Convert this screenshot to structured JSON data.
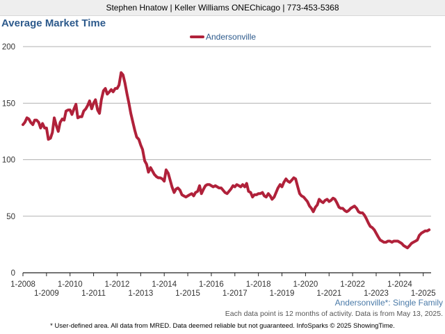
{
  "header": {
    "contact_line": "Stephen Hnatow | Keller Williams ONEChicago | 773-453-5368"
  },
  "chart_data": {
    "type": "line",
    "title": "Average Market Time",
    "xlabel": "",
    "ylabel": "",
    "ylim": [
      0,
      200
    ],
    "yticks": [
      "0",
      "50",
      "100",
      "150",
      "200"
    ],
    "xlim": [
      2008.0,
      2025.333
    ],
    "xticks": [
      {
        "label": "1-2008",
        "x": 2008,
        "row": 1
      },
      {
        "label": "1-2009",
        "x": 2009,
        "row": 2
      },
      {
        "label": "1-2010",
        "x": 2010,
        "row": 1
      },
      {
        "label": "1-2011",
        "x": 2011,
        "row": 2
      },
      {
        "label": "1-2012",
        "x": 2012,
        "row": 1
      },
      {
        "label": "1-2013",
        "x": 2013,
        "row": 2
      },
      {
        "label": "1-2014",
        "x": 2014,
        "row": 1
      },
      {
        "label": "1-2015",
        "x": 2015,
        "row": 2
      },
      {
        "label": "1-2016",
        "x": 2016,
        "row": 1
      },
      {
        "label": "1-2017",
        "x": 2017,
        "row": 2
      },
      {
        "label": "1-2018",
        "x": 2018,
        "row": 1
      },
      {
        "label": "1-2019",
        "x": 2019,
        "row": 2
      },
      {
        "label": "1-2020",
        "x": 2020,
        "row": 1
      },
      {
        "label": "1-2021",
        "x": 2021,
        "row": 2
      },
      {
        "label": "1-2022",
        "x": 2022,
        "row": 1
      },
      {
        "label": "1-2023",
        "x": 2023,
        "row": 2
      },
      {
        "label": "1-2024",
        "x": 2024,
        "row": 1
      },
      {
        "label": "1-2025",
        "x": 2025,
        "row": 2
      }
    ],
    "grid": true,
    "legend_position": "top-center",
    "series": [
      {
        "name": "Andersonville",
        "color": "#b0213a",
        "points": [
          [
            2008.0,
            131
          ],
          [
            2008.08,
            133
          ],
          [
            2008.17,
            137
          ],
          [
            2008.25,
            136
          ],
          [
            2008.33,
            133
          ],
          [
            2008.42,
            131
          ],
          [
            2008.5,
            135
          ],
          [
            2008.58,
            135
          ],
          [
            2008.67,
            133
          ],
          [
            2008.75,
            128
          ],
          [
            2008.83,
            132
          ],
          [
            2008.92,
            128
          ],
          [
            2009.0,
            128
          ],
          [
            2009.08,
            118
          ],
          [
            2009.17,
            119
          ],
          [
            2009.25,
            124
          ],
          [
            2009.33,
            137
          ],
          [
            2009.42,
            130
          ],
          [
            2009.5,
            125
          ],
          [
            2009.58,
            133
          ],
          [
            2009.67,
            136
          ],
          [
            2009.75,
            135
          ],
          [
            2009.83,
            143
          ],
          [
            2009.92,
            144
          ],
          [
            2010.0,
            144
          ],
          [
            2010.08,
            140
          ],
          [
            2010.17,
            145
          ],
          [
            2010.25,
            149
          ],
          [
            2010.33,
            137
          ],
          [
            2010.42,
            138
          ],
          [
            2010.5,
            138
          ],
          [
            2010.58,
            143
          ],
          [
            2010.67,
            145
          ],
          [
            2010.75,
            148
          ],
          [
            2010.83,
            152
          ],
          [
            2010.92,
            145
          ],
          [
            2011.0,
            150
          ],
          [
            2011.08,
            153
          ],
          [
            2011.17,
            144
          ],
          [
            2011.25,
            141
          ],
          [
            2011.33,
            153
          ],
          [
            2011.42,
            161
          ],
          [
            2011.5,
            163
          ],
          [
            2011.58,
            158
          ],
          [
            2011.67,
            160
          ],
          [
            2011.75,
            162
          ],
          [
            2011.83,
            160
          ],
          [
            2011.92,
            163
          ],
          [
            2012.0,
            163
          ],
          [
            2012.08,
            166
          ],
          [
            2012.17,
            177
          ],
          [
            2012.25,
            175
          ],
          [
            2012.33,
            168
          ],
          [
            2012.42,
            158
          ],
          [
            2012.5,
            150
          ],
          [
            2012.58,
            141
          ],
          [
            2012.67,
            133
          ],
          [
            2012.75,
            126
          ],
          [
            2012.83,
            120
          ],
          [
            2012.92,
            118
          ],
          [
            2013.0,
            113
          ],
          [
            2013.08,
            109
          ],
          [
            2013.17,
            99
          ],
          [
            2013.25,
            96
          ],
          [
            2013.33,
            89
          ],
          [
            2013.42,
            93
          ],
          [
            2013.5,
            90
          ],
          [
            2013.58,
            87
          ],
          [
            2013.67,
            85
          ],
          [
            2013.75,
            84
          ],
          [
            2013.83,
            84
          ],
          [
            2013.92,
            83
          ],
          [
            2014.0,
            81
          ],
          [
            2014.08,
            91
          ],
          [
            2014.17,
            88
          ],
          [
            2014.25,
            82
          ],
          [
            2014.33,
            76
          ],
          [
            2014.42,
            71
          ],
          [
            2014.5,
            74
          ],
          [
            2014.58,
            75
          ],
          [
            2014.67,
            73
          ],
          [
            2014.75,
            69
          ],
          [
            2014.83,
            68
          ],
          [
            2014.92,
            67
          ],
          [
            2015.0,
            68
          ],
          [
            2015.08,
            69
          ],
          [
            2015.17,
            70
          ],
          [
            2015.25,
            68
          ],
          [
            2015.33,
            71
          ],
          [
            2015.42,
            72
          ],
          [
            2015.5,
            77
          ],
          [
            2015.58,
            70
          ],
          [
            2015.67,
            74
          ],
          [
            2015.75,
            77
          ],
          [
            2015.83,
            78
          ],
          [
            2015.92,
            78
          ],
          [
            2016.0,
            77
          ],
          [
            2016.08,
            76
          ],
          [
            2016.17,
            77
          ],
          [
            2016.25,
            76
          ],
          [
            2016.33,
            75
          ],
          [
            2016.42,
            75
          ],
          [
            2016.5,
            73
          ],
          [
            2016.58,
            71
          ],
          [
            2016.67,
            70
          ],
          [
            2016.75,
            72
          ],
          [
            2016.83,
            74
          ],
          [
            2016.92,
            77
          ],
          [
            2017.0,
            76
          ],
          [
            2017.08,
            78
          ],
          [
            2017.17,
            77
          ],
          [
            2017.25,
            76
          ],
          [
            2017.33,
            78
          ],
          [
            2017.42,
            76
          ],
          [
            2017.5,
            79
          ],
          [
            2017.58,
            72
          ],
          [
            2017.67,
            71
          ],
          [
            2017.75,
            67
          ],
          [
            2017.83,
            69
          ],
          [
            2017.92,
            69
          ],
          [
            2018.0,
            70
          ],
          [
            2018.08,
            70
          ],
          [
            2018.17,
            71
          ],
          [
            2018.25,
            68
          ],
          [
            2018.33,
            67
          ],
          [
            2018.42,
            70
          ],
          [
            2018.5,
            68
          ],
          [
            2018.58,
            65
          ],
          [
            2018.67,
            67
          ],
          [
            2018.75,
            71
          ],
          [
            2018.83,
            75
          ],
          [
            2018.92,
            78
          ],
          [
            2019.0,
            76
          ],
          [
            2019.08,
            80
          ],
          [
            2019.17,
            83
          ],
          [
            2019.25,
            81
          ],
          [
            2019.33,
            80
          ],
          [
            2019.42,
            82
          ],
          [
            2019.5,
            84
          ],
          [
            2019.58,
            83
          ],
          [
            2019.67,
            76
          ],
          [
            2019.75,
            70
          ],
          [
            2019.83,
            68
          ],
          [
            2019.92,
            67
          ],
          [
            2020.0,
            65
          ],
          [
            2020.08,
            63
          ],
          [
            2020.17,
            59
          ],
          [
            2020.25,
            57
          ],
          [
            2020.33,
            54
          ],
          [
            2020.42,
            58
          ],
          [
            2020.5,
            60
          ],
          [
            2020.58,
            65
          ],
          [
            2020.67,
            63
          ],
          [
            2020.75,
            62
          ],
          [
            2020.83,
            64
          ],
          [
            2020.92,
            65
          ],
          [
            2021.0,
            63
          ],
          [
            2021.08,
            64
          ],
          [
            2021.17,
            66
          ],
          [
            2021.25,
            65
          ],
          [
            2021.33,
            62
          ],
          [
            2021.42,
            58
          ],
          [
            2021.5,
            57
          ],
          [
            2021.58,
            57
          ],
          [
            2021.67,
            55
          ],
          [
            2021.75,
            54
          ],
          [
            2021.83,
            55
          ],
          [
            2021.92,
            57
          ],
          [
            2022.0,
            58
          ],
          [
            2022.08,
            59
          ],
          [
            2022.17,
            57
          ],
          [
            2022.25,
            54
          ],
          [
            2022.33,
            53
          ],
          [
            2022.42,
            53
          ],
          [
            2022.5,
            51
          ],
          [
            2022.58,
            48
          ],
          [
            2022.67,
            44
          ],
          [
            2022.75,
            41
          ],
          [
            2022.83,
            40
          ],
          [
            2022.92,
            38
          ],
          [
            2023.0,
            35
          ],
          [
            2023.08,
            32
          ],
          [
            2023.17,
            29
          ],
          [
            2023.25,
            28
          ],
          [
            2023.33,
            27
          ],
          [
            2023.42,
            27
          ],
          [
            2023.5,
            28
          ],
          [
            2023.58,
            28
          ],
          [
            2023.67,
            27
          ],
          [
            2023.75,
            28
          ],
          [
            2023.83,
            28
          ],
          [
            2023.92,
            28
          ],
          [
            2024.0,
            27
          ],
          [
            2024.08,
            26
          ],
          [
            2024.17,
            24
          ],
          [
            2024.25,
            23
          ],
          [
            2024.33,
            22
          ],
          [
            2024.42,
            24
          ],
          [
            2024.5,
            26
          ],
          [
            2024.58,
            27
          ],
          [
            2024.67,
            28
          ],
          [
            2024.75,
            29
          ],
          [
            2024.83,
            33
          ],
          [
            2024.92,
            35
          ],
          [
            2025.0,
            36
          ],
          [
            2025.08,
            37
          ],
          [
            2025.17,
            37
          ],
          [
            2025.25,
            38
          ]
        ]
      }
    ]
  },
  "annotations": {
    "subject_label": "Andersonville*: Single Family",
    "data_note": "Each data point is 12 months of activity. Data is from May 13, 2025."
  },
  "footer": {
    "disclaimer": "* User-defined area. All data from MRED. Data deemed reliable but not guaranteed. InfoSparks © 2025 ShowingTime."
  },
  "colors": {
    "header_background": "#eeeeee",
    "title_color": "#2d5a8c",
    "legend_text_color": "#2d5a8c",
    "series_color": "#b0213a",
    "gridline_color": "#999999",
    "subject_label_color": "#4a7aa8",
    "note_color": "#555555"
  }
}
